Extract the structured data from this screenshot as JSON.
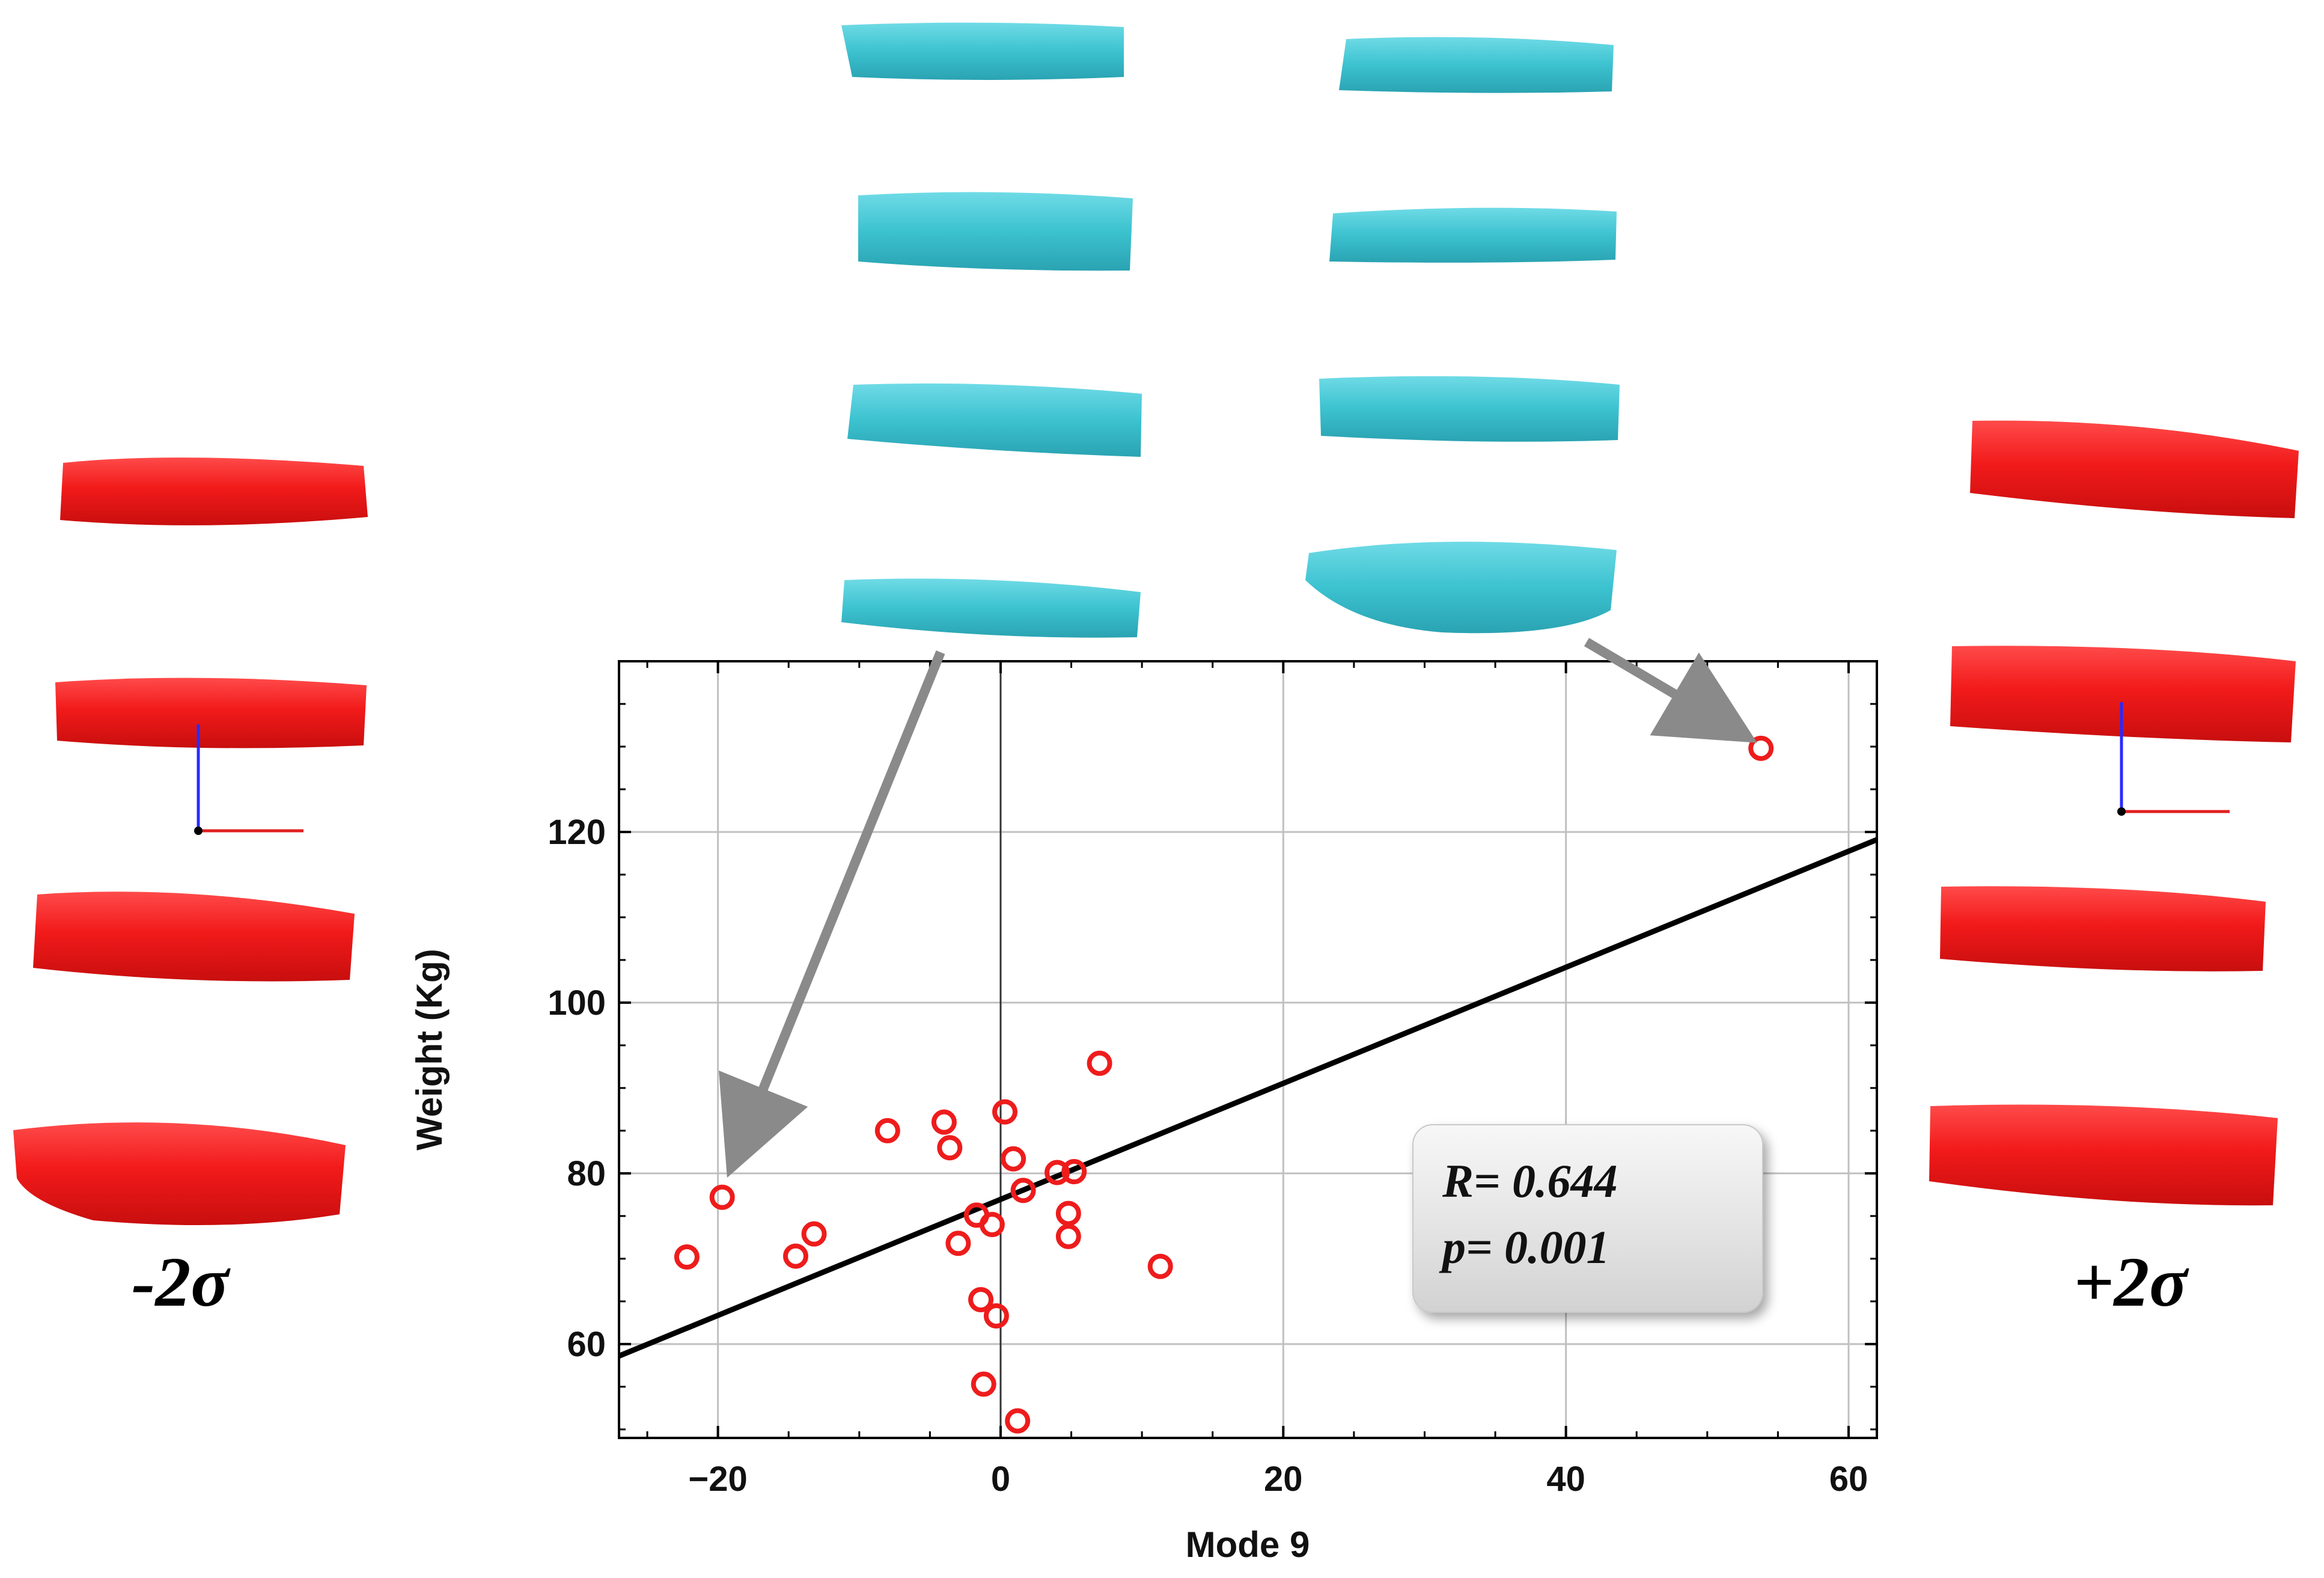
{
  "chart_data": {
    "type": "scatter",
    "xlabel": "Mode 9",
    "ylabel": "Weight (Kg)",
    "xlim": [
      -27,
      62
    ],
    "ylim": [
      49,
      140
    ],
    "x_ticks": [
      -20,
      0,
      20,
      40,
      60
    ],
    "y_ticks": [
      60,
      80,
      100,
      120
    ],
    "grid": true,
    "marker": "open-circle",
    "colors": {
      "points": "#ee1c1c",
      "fit_line": "#000000",
      "grid": "#c0c0c0"
    },
    "points": [
      {
        "x": -22.2,
        "y": 70.2
      },
      {
        "x": -19.7,
        "y": 77.2
      },
      {
        "x": -14.5,
        "y": 70.3
      },
      {
        "x": -13.2,
        "y": 72.9
      },
      {
        "x": -8.0,
        "y": 85.0
      },
      {
        "x": -4.0,
        "y": 86.0
      },
      {
        "x": -3.6,
        "y": 83.0
      },
      {
        "x": -3.0,
        "y": 71.8
      },
      {
        "x": -1.7,
        "y": 75.1
      },
      {
        "x": -1.4,
        "y": 65.2
      },
      {
        "x": -1.2,
        "y": 55.3
      },
      {
        "x": -0.6,
        "y": 74.0
      },
      {
        "x": -0.3,
        "y": 63.3
      },
      {
        "x": 0.3,
        "y": 87.2
      },
      {
        "x": 0.9,
        "y": 81.7
      },
      {
        "x": 1.2,
        "y": 51.0
      },
      {
        "x": 1.6,
        "y": 78.0
      },
      {
        "x": 4.0,
        "y": 80.1
      },
      {
        "x": 4.8,
        "y": 75.3
      },
      {
        "x": 4.8,
        "y": 72.6
      },
      {
        "x": 5.2,
        "y": 80.2
      },
      {
        "x": 7.0,
        "y": 92.9
      },
      {
        "x": 11.3,
        "y": 69.1
      },
      {
        "x": 53.8,
        "y": 129.8
      }
    ],
    "fit_line": {
      "x": [
        -27,
        62
      ],
      "y": [
        58.6,
        119.1
      ]
    },
    "annotations": {
      "r_text": "R= 0.644",
      "p_text": "p= 0.001"
    }
  },
  "labels": {
    "minus_sigma": "-2σ",
    "plus_sigma": "+2σ"
  },
  "shape_colors": {
    "red_shapes": "#ff2020",
    "cyan_shapes": "#3fc6d4",
    "arrow": "#8a8a8a"
  }
}
